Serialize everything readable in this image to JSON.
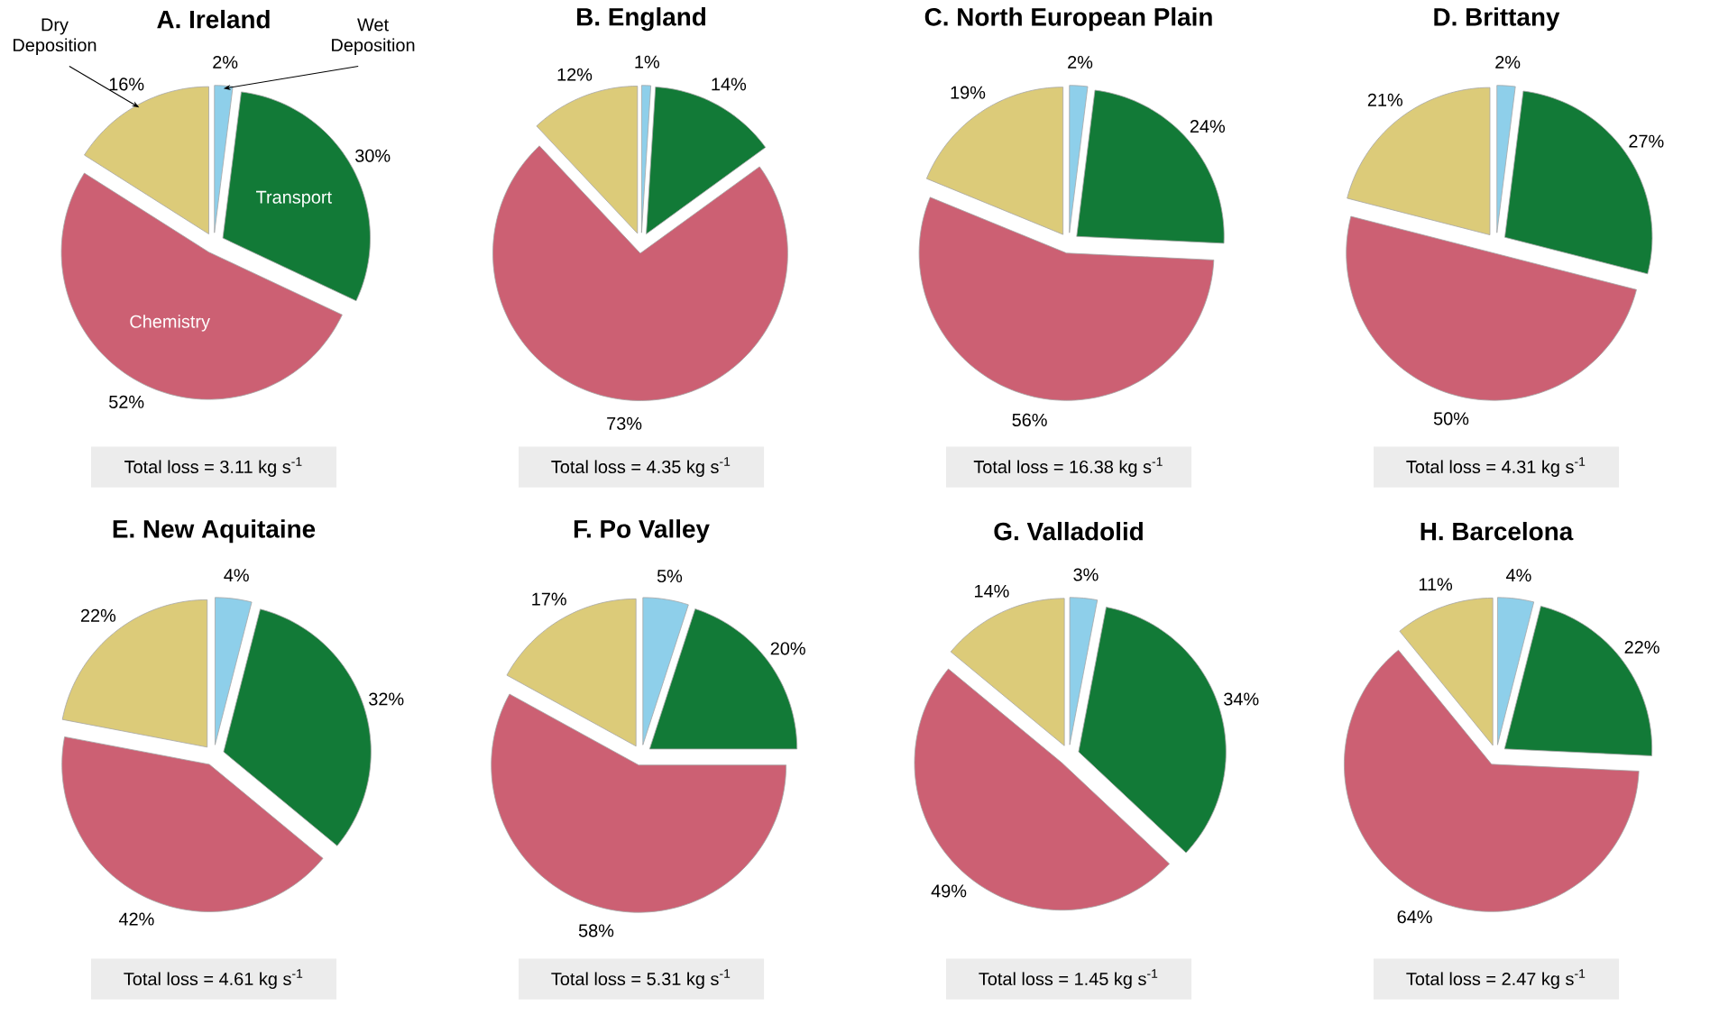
{
  "chart_data": [
    {
      "type": "pie",
      "title": "A. Ireland",
      "categories": [
        "Wet Deposition",
        "Transport",
        "Chemistry",
        "Dry Deposition"
      ],
      "values": [
        2,
        30,
        52,
        16
      ],
      "value_labels": [
        "2%",
        "30%",
        "52%",
        "16%"
      ],
      "colors": [
        "#8ecfea",
        "#127a37",
        "#cc6073",
        "#dccb79"
      ],
      "annotations": [
        "Total loss = 3.11 kg s$^{-1}$"
      ]
    },
    {
      "type": "pie",
      "title": "B. England",
      "categories": [
        null,
        null,
        null,
        null
      ],
      "values": [
        1,
        14,
        73,
        12
      ],
      "value_labels": [
        "1%",
        "14%",
        "73%",
        "12%"
      ],
      "colors": [
        "#8ecfea",
        "#127a37",
        "#cc6073",
        "#dccb79"
      ],
      "annotations": [
        "Total loss = 4.35 kg s$^{-1}$"
      ]
    },
    {
      "type": "pie",
      "title": "C. North European Plain",
      "categories": [
        null,
        null,
        null,
        null
      ],
      "values": [
        2,
        24,
        56,
        19
      ],
      "value_labels": [
        "2%",
        "24%",
        "56%",
        "19%"
      ],
      "colors": [
        "#8ecfea",
        "#127a37",
        "#cc6073",
        "#dccb79"
      ],
      "annotations": [
        "Total loss = 16.38 kg s$^{-1}$"
      ]
    },
    {
      "type": "pie",
      "title": "D. Brittany",
      "categories": [
        null,
        null,
        null,
        null
      ],
      "values": [
        2,
        27,
        50,
        21
      ],
      "value_labels": [
        "2%",
        "27%",
        "50%",
        "21%"
      ],
      "colors": [
        "#8ecfea",
        "#127a37",
        "#cc6073",
        "#dccb79"
      ],
      "annotations": [
        "Total loss = 4.31 kg s$^{-1}$"
      ]
    },
    {
      "type": "pie",
      "title": "E. New Aquitaine",
      "categories": [
        null,
        null,
        null,
        null
      ],
      "values": [
        4,
        32,
        42,
        22
      ],
      "value_labels": [
        "4%",
        "32%",
        "42%",
        "22%"
      ],
      "colors": [
        "#8ecfea",
        "#127a37",
        "#cc6073",
        "#dccb79"
      ],
      "annotations": [
        "Total loss = 4.61 kg s$^{-1}$"
      ]
    },
    {
      "type": "pie",
      "title": "F. Po Valley",
      "categories": [
        null,
        null,
        null,
        null
      ],
      "values": [
        5,
        20,
        58,
        17
      ],
      "value_labels": [
        "5%",
        "20%",
        "58%",
        "17%"
      ],
      "colors": [
        "#8ecfea",
        "#127a37",
        "#cc6073",
        "#dccb79"
      ],
      "annotations": [
        "Total loss = 5.31 kg s$^{-1}$"
      ]
    },
    {
      "type": "pie",
      "title": "G. Valladolid",
      "categories": [
        null,
        null,
        null,
        null
      ],
      "values": [
        3,
        34,
        49,
        14
      ],
      "value_labels": [
        "3%",
        "34%",
        "49%",
        "14%"
      ],
      "colors": [
        "#8ecfea",
        "#127a37",
        "#cc6073",
        "#dccb79"
      ],
      "annotations": [
        "Total loss = 1.45 kg s$^{-1}$"
      ]
    },
    {
      "type": "pie",
      "title": "H. Barcelona",
      "categories": [
        null,
        null,
        null,
        null
      ],
      "values": [
        4,
        22,
        64,
        11
      ],
      "value_labels": [
        "4%",
        "22%",
        "64%",
        "11%"
      ],
      "colors": [
        "#8ecfea",
        "#127a37",
        "#cc6073",
        "#dccb79"
      ],
      "annotations": [
        "Total loss = 2.47 kg s$^{-1}$"
      ]
    }
  ]
}
